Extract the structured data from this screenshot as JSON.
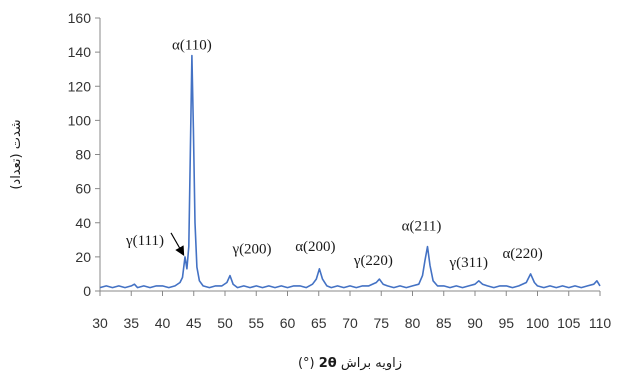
{
  "chart_data": {
    "type": "line",
    "title": "",
    "xlabel_prefix": "زاویه براش",
    "xlabel_symbol": "2θ",
    "xlabel_unit": "(°)",
    "ylabel": "شدت (تعداد)",
    "xlim": [
      30,
      110
    ],
    "ylim": [
      0,
      160
    ],
    "x_ticks": [
      30,
      35,
      40,
      45,
      50,
      55,
      60,
      65,
      70,
      75,
      80,
      85,
      90,
      95,
      100,
      105,
      110
    ],
    "y_ticks": [
      0,
      20,
      40,
      60,
      80,
      100,
      120,
      140,
      160
    ],
    "grid": false,
    "series_color": "#4472c4",
    "peaks": [
      {
        "label": "α(110)",
        "x": 44.7,
        "y": 138
      },
      {
        "label": "γ(111)",
        "x": 43.6,
        "y": 20
      },
      {
        "label": "γ(200)",
        "x": 50.8,
        "y": 9
      },
      {
        "label": "α(200)",
        "x": 65.1,
        "y": 13
      },
      {
        "label": "γ(220)",
        "x": 74.7,
        "y": 7
      },
      {
        "label": "α(211)",
        "x": 82.4,
        "y": 26
      },
      {
        "label": "γ(311)",
        "x": 90.6,
        "y": 6
      },
      {
        "label": "α(220)",
        "x": 98.9,
        "y": 10
      }
    ],
    "series": [
      {
        "values": [
          [
            30.0,
            2
          ],
          [
            31.0,
            3
          ],
          [
            32.0,
            2
          ],
          [
            33.0,
            3
          ],
          [
            34.0,
            2
          ],
          [
            35.0,
            3
          ],
          [
            35.5,
            4
          ],
          [
            36.0,
            2
          ],
          [
            37.0,
            3
          ],
          [
            38.0,
            2
          ],
          [
            39.0,
            3
          ],
          [
            40.0,
            3
          ],
          [
            41.0,
            2
          ],
          [
            42.0,
            3
          ],
          [
            42.8,
            5
          ],
          [
            43.2,
            8
          ],
          [
            43.6,
            20
          ],
          [
            43.9,
            13
          ],
          [
            44.2,
            26
          ],
          [
            44.45,
            80
          ],
          [
            44.7,
            138
          ],
          [
            44.95,
            95
          ],
          [
            45.2,
            40
          ],
          [
            45.5,
            14
          ],
          [
            45.9,
            6
          ],
          [
            46.5,
            3
          ],
          [
            47.5,
            2
          ],
          [
            48.5,
            3
          ],
          [
            49.5,
            3
          ],
          [
            50.3,
            5
          ],
          [
            50.8,
            9
          ],
          [
            51.3,
            4
          ],
          [
            52.0,
            2
          ],
          [
            53.0,
            3
          ],
          [
            54.0,
            2
          ],
          [
            55.0,
            3
          ],
          [
            56.0,
            2
          ],
          [
            57.0,
            3
          ],
          [
            58.0,
            2
          ],
          [
            59.0,
            3
          ],
          [
            60.0,
            2
          ],
          [
            61.0,
            3
          ],
          [
            62.0,
            3
          ],
          [
            63.0,
            2
          ],
          [
            64.0,
            4
          ],
          [
            64.6,
            7
          ],
          [
            65.1,
            13
          ],
          [
            65.6,
            7
          ],
          [
            66.3,
            3
          ],
          [
            67.0,
            2
          ],
          [
            68.0,
            3
          ],
          [
            69.0,
            2
          ],
          [
            70.0,
            3
          ],
          [
            71.0,
            2
          ],
          [
            72.0,
            3
          ],
          [
            73.0,
            3
          ],
          [
            74.2,
            5
          ],
          [
            74.7,
            7
          ],
          [
            75.3,
            4
          ],
          [
            76.0,
            3
          ],
          [
            77.0,
            2
          ],
          [
            78.0,
            3
          ],
          [
            79.0,
            2
          ],
          [
            80.0,
            3
          ],
          [
            81.0,
            4
          ],
          [
            81.6,
            9
          ],
          [
            82.0,
            18
          ],
          [
            82.4,
            26
          ],
          [
            82.8,
            15
          ],
          [
            83.3,
            6
          ],
          [
            84.0,
            3
          ],
          [
            85.0,
            3
          ],
          [
            86.0,
            2
          ],
          [
            87.0,
            3
          ],
          [
            88.0,
            2
          ],
          [
            89.0,
            3
          ],
          [
            90.0,
            4
          ],
          [
            90.6,
            6
          ],
          [
            91.2,
            4
          ],
          [
            92.0,
            3
          ],
          [
            93.0,
            2
          ],
          [
            94.0,
            3
          ],
          [
            95.0,
            3
          ],
          [
            96.0,
            2
          ],
          [
            97.0,
            3
          ],
          [
            98.2,
            5
          ],
          [
            98.9,
            10
          ],
          [
            99.5,
            5
          ],
          [
            100.0,
            3
          ],
          [
            101.0,
            2
          ],
          [
            102.0,
            3
          ],
          [
            103.0,
            2
          ],
          [
            104.0,
            3
          ],
          [
            105.0,
            2
          ],
          [
            106.0,
            3
          ],
          [
            107.0,
            2
          ],
          [
            108.0,
            3
          ],
          [
            109.0,
            4
          ],
          [
            109.5,
            6
          ],
          [
            110.0,
            3
          ]
        ]
      }
    ]
  }
}
